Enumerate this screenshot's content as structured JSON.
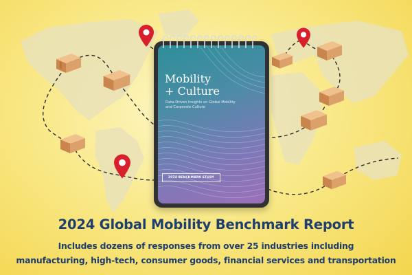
{
  "notebook": {
    "title_line1": "Mobility",
    "title_line2": "+ Culture",
    "subtitle_line1": "Data-Driven Insights on Global Mobility",
    "subtitle_line2": "and Corporate Culture",
    "badge": "2024 BENCHMARK STUDY"
  },
  "headline": "2024 Global Mobility Benchmark Report",
  "subline_1": "Includes dozens of responses from over 25 industries including",
  "subline_2": "manufacturing, high-tech, consumer goods, financial services and transportation",
  "icons": [
    "world-map",
    "package-box",
    "location-pin",
    "spiral-rings"
  ],
  "colors": {
    "background": "#f9e98a",
    "headline": "#1f3e6e",
    "pin": "#d81f2c",
    "box": "#d9a16a",
    "cover_top": "#2d8f98",
    "cover_bottom": "#9b6fb8"
  }
}
